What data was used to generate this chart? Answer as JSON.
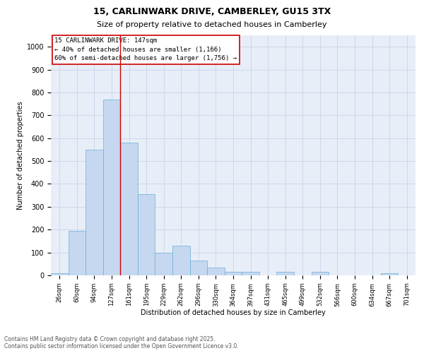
{
  "title_line1": "15, CARLINWARK DRIVE, CAMBERLEY, GU15 3TX",
  "title_line2": "Size of property relative to detached houses in Camberley",
  "xlabel": "Distribution of detached houses by size in Camberley",
  "ylabel": "Number of detached properties",
  "categories": [
    "26sqm",
    "60sqm",
    "94sqm",
    "127sqm",
    "161sqm",
    "195sqm",
    "229sqm",
    "262sqm",
    "296sqm",
    "330sqm",
    "364sqm",
    "397sqm",
    "431sqm",
    "465sqm",
    "499sqm",
    "532sqm",
    "566sqm",
    "600sqm",
    "634sqm",
    "667sqm",
    "701sqm"
  ],
  "values": [
    8,
    195,
    550,
    770,
    580,
    355,
    100,
    130,
    65,
    35,
    15,
    15,
    0,
    15,
    0,
    15,
    0,
    0,
    0,
    8,
    0
  ],
  "bar_color": "#c5d8f0",
  "bar_edge_color": "#6baed6",
  "background_color": "#e8eef8",
  "grid_color": "#c8d4e8",
  "vline_x": 3.5,
  "vline_color": "#cc0000",
  "annotation_line1": "15 CARLINWARK DRIVE: 147sqm",
  "annotation_line2": "← 40% of detached houses are smaller (1,166)",
  "annotation_line3": "60% of semi-detached houses are larger (1,756) →",
  "annotation_box_edgecolor": "#cc0000",
  "ylim": [
    0,
    1050
  ],
  "yticks": [
    0,
    100,
    200,
    300,
    400,
    500,
    600,
    700,
    800,
    900,
    1000
  ],
  "footnote_line1": "Contains HM Land Registry data © Crown copyright and database right 2025.",
  "footnote_line2": "Contains public sector information licensed under the Open Government Licence v3.0.",
  "title_fontsize": 9,
  "subtitle_fontsize": 8,
  "ylabel_fontsize": 7,
  "xlabel_fontsize": 7,
  "ytick_fontsize": 7,
  "xtick_fontsize": 6,
  "annotation_fontsize": 6.5,
  "footnote_fontsize": 5.5
}
